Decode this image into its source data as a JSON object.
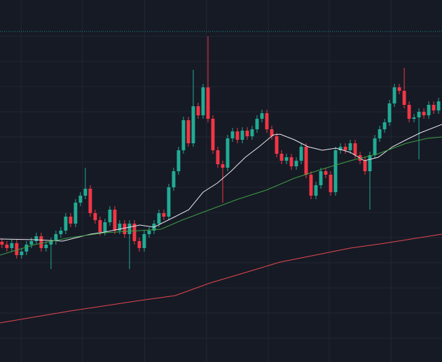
{
  "chart_data": {
    "type": "candlestick",
    "background": "#161a25",
    "grid": true,
    "grid_color": "#232733",
    "up_color": "#22ab94",
    "down_color": "#f23645",
    "xlim": [
      -0.4,
      89.7
    ],
    "ylim": [
      0,
      518
    ],
    "xticks": [
      3.9,
      16.4,
      29.1,
      41.7,
      54.3,
      66.7,
      79.3
    ],
    "yticks": [
      34,
      70,
      106,
      142,
      178,
      214,
      250,
      286,
      322,
      358,
      394,
      430,
      466
    ],
    "price_line": {
      "value": 473,
      "color": "#1e8c86"
    },
    "open": [
      172,
      168,
      163,
      170,
      153,
      158,
      168,
      173,
      180,
      163,
      168,
      173,
      183,
      188,
      208,
      198,
      228,
      238,
      248,
      213,
      203,
      186,
      200,
      218,
      188,
      198,
      183,
      198,
      173,
      163,
      183,
      188,
      198,
      213,
      208,
      250,
      273,
      303,
      346,
      313,
      366,
      353,
      393,
      348,
      303,
      283,
      278,
      320,
      330,
      318,
      331,
      323,
      333,
      348,
      356,
      333,
      323,
      298,
      288,
      293,
      280,
      288,
      308,
      268,
      238,
      253,
      273,
      268,
      243,
      303,
      308,
      303,
      313,
      296,
      288,
      273,
      296,
      320,
      333,
      343,
      370,
      393,
      388,
      368,
      348,
      350,
      358,
      353,
      368,
      360
    ],
    "high": [
      177,
      173,
      175,
      175,
      163,
      173,
      178,
      185,
      185,
      173,
      178,
      188,
      193,
      213,
      213,
      233,
      243,
      278,
      253,
      218,
      208,
      205,
      223,
      223,
      203,
      203,
      203,
      203,
      178,
      188,
      193,
      203,
      218,
      218,
      255,
      278,
      308,
      351,
      351,
      418,
      371,
      398,
      466,
      353,
      308,
      288,
      325,
      335,
      335,
      336,
      336,
      338,
      353,
      361,
      361,
      338,
      328,
      303,
      298,
      298,
      293,
      313,
      313,
      273,
      258,
      278,
      278,
      273,
      308,
      313,
      313,
      318,
      318,
      301,
      293,
      301,
      325,
      338,
      348,
      375,
      398,
      398,
      421,
      373,
      355,
      363,
      363,
      373,
      373,
      378
    ],
    "low": [
      163,
      158,
      158,
      148,
      148,
      153,
      163,
      168,
      158,
      158,
      133,
      168,
      178,
      183,
      193,
      193,
      223,
      233,
      208,
      198,
      181,
      181,
      195,
      183,
      183,
      178,
      133,
      168,
      158,
      158,
      178,
      183,
      193,
      203,
      203,
      245,
      268,
      298,
      308,
      308,
      348,
      348,
      343,
      298,
      278,
      228,
      273,
      315,
      313,
      313,
      318,
      318,
      328,
      343,
      328,
      318,
      293,
      283,
      283,
      275,
      275,
      283,
      263,
      233,
      233,
      248,
      263,
      238,
      238,
      298,
      298,
      298,
      291,
      283,
      268,
      218,
      291,
      315,
      328,
      338,
      365,
      383,
      363,
      343,
      343,
      290,
      348,
      348,
      355,
      355
    ],
    "close": [
      168,
      163,
      170,
      153,
      158,
      168,
      173,
      180,
      163,
      168,
      173,
      183,
      188,
      208,
      198,
      228,
      238,
      248,
      213,
      203,
      186,
      200,
      218,
      188,
      198,
      183,
      198,
      173,
      163,
      183,
      188,
      198,
      213,
      208,
      250,
      273,
      303,
      346,
      313,
      366,
      353,
      393,
      348,
      303,
      283,
      278,
      320,
      330,
      318,
      331,
      323,
      333,
      348,
      356,
      333,
      323,
      298,
      288,
      293,
      280,
      288,
      308,
      268,
      238,
      253,
      273,
      268,
      243,
      303,
      308,
      303,
      313,
      296,
      288,
      273,
      296,
      320,
      333,
      343,
      370,
      393,
      388,
      368,
      348,
      350,
      358,
      353,
      368,
      360,
      373
    ],
    "lines": [
      {
        "color": "#e8e8ee",
        "x": [
          -0.4,
          6.7,
          12.4,
          18.1,
          21,
          28.1,
          31,
          35.3,
          38.1,
          41,
          43.9,
          46.7,
          49.6,
          52.4,
          55.3,
          56.7,
          59.6,
          62.4,
          65.3,
          68.1,
          71,
          73.9,
          76.7,
          79.6,
          82.4,
          85.3,
          89.7
        ],
        "values": [
          176,
          175,
          173,
          183,
          186,
          196,
          193,
          208,
          218,
          243,
          256,
          273,
          293,
          308,
          325,
          326,
          318,
          308,
          303,
          306,
          300,
          288,
          293,
          308,
          318,
          328,
          340
        ]
      },
      {
        "color": "#3f9e45",
        "x": [
          -0.4,
          6.7,
          13.9,
          21,
          28.1,
          32.4,
          36.7,
          42.4,
          48.1,
          53.9,
          59.6,
          65.3,
          71,
          76.7,
          82.4,
          86.7,
          89.7
        ],
        "values": [
          153,
          168,
          178,
          185,
          188,
          190,
          203,
          218,
          233,
          246,
          263,
          276,
          288,
          298,
          313,
          320,
          322
        ]
      },
      {
        "color": "#e5484d",
        "x": [
          -0.4,
          13.9,
          28.1,
          35.3,
          42.4,
          49.6,
          56.7,
          63.9,
          71,
          78.1,
          89.7
        ],
        "values": [
          56,
          73,
          88,
          95,
          113,
          128,
          143,
          153,
          163,
          170,
          183
        ]
      }
    ]
  }
}
